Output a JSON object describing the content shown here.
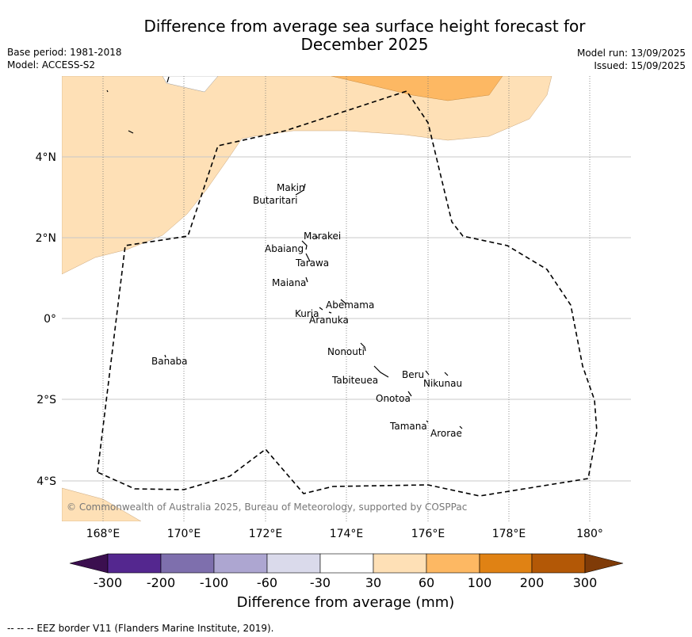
{
  "title": "Difference from average sea surface height forecast for December 2025",
  "meta_left": {
    "base_period": "Base period: 1981-2018",
    "model": "Model: ACCESS-S2"
  },
  "meta_right": {
    "model_run": "Model run: 13/09/2025",
    "issued": "Issued: 15/09/2025"
  },
  "map": {
    "lat_ticks": [
      "4°N",
      "2°N",
      "0°",
      "2°S",
      "4°S"
    ],
    "lon_ticks": [
      "168°E",
      "170°E",
      "172°E",
      "174°E",
      "176°E",
      "178°E",
      "180°"
    ],
    "islands": [
      "Makin",
      "Butaritari",
      "Marakei",
      "Abaiang",
      "Tarawa",
      "Maiana",
      "Abemama",
      "Kuria",
      "Aranuka",
      "Nonouti",
      "Banaba",
      "Beru",
      "Nikunau",
      "Tabiteuea",
      "Onotoa",
      "Tamana",
      "Arorae"
    ],
    "copyright": "© Commonwealth of Australia 2025, Bureau of Meteorology, supported by COSPPac"
  },
  "colorbar": {
    "title": "Difference from average (mm)",
    "ticks": [
      "-300",
      "-200",
      "-100",
      "-60",
      "-30",
      "30",
      "60",
      "100",
      "200",
      "300"
    ],
    "colors": [
      "#3b0f4f",
      "#54278f",
      "#7e6fad",
      "#ada6d1",
      "#dadaeb",
      "#ffffff",
      "#fee0b6",
      "#fdb863",
      "#e08214",
      "#b35806",
      "#7f3b08"
    ]
  },
  "footnote": "--  --  -- EEZ border V11 (Flanders Marine Institute, 2019)."
}
